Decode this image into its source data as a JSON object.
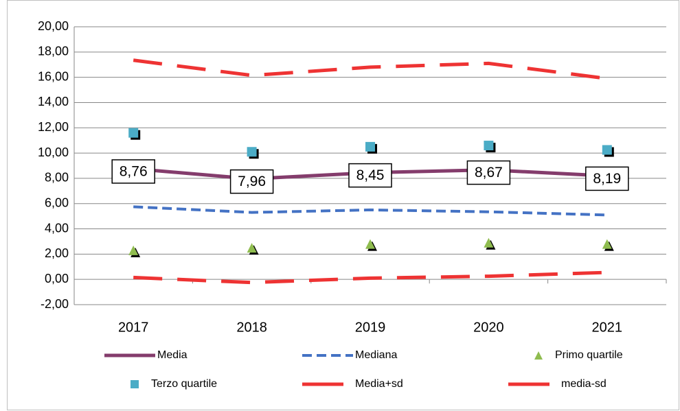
{
  "chart_data": {
    "type": "line",
    "categories": [
      "2017",
      "2018",
      "2019",
      "2020",
      "2021"
    ],
    "ylim": [
      -2,
      20
    ],
    "yticks": [
      {
        "value": -2,
        "label": "-2,00"
      },
      {
        "value": 0,
        "label": "0,00"
      },
      {
        "value": 2,
        "label": "2,00"
      },
      {
        "value": 4,
        "label": "4,00"
      },
      {
        "value": 6,
        "label": "6,00"
      },
      {
        "value": 8,
        "label": "8,00"
      },
      {
        "value": 10,
        "label": "10,00"
      },
      {
        "value": 12,
        "label": "12,00"
      },
      {
        "value": 14,
        "label": "14,00"
      },
      {
        "value": 16,
        "label": "16,00"
      },
      {
        "value": 18,
        "label": "18,00"
      },
      {
        "value": 20,
        "label": "20,00"
      }
    ],
    "grid": true,
    "legend": "bottom",
    "series": [
      {
        "name": "Media",
        "color": "#843c6c",
        "line_style": "solid",
        "values": [
          8.76,
          7.96,
          8.45,
          8.67,
          8.19
        ],
        "value_labels": [
          "8,76",
          "7,96",
          "8,45",
          "8,67",
          "8,19"
        ]
      },
      {
        "name": "Mediana",
        "color": "#4472c4",
        "line_style": "dashed",
        "values": [
          5.75,
          5.3,
          5.5,
          5.35,
          5.1
        ]
      },
      {
        "name": "Primo quartile",
        "color": "#8fbc4f",
        "marker": "triangle",
        "values": [
          2.3,
          2.5,
          2.8,
          2.9,
          2.8
        ]
      },
      {
        "name": "Terzo quartile",
        "color": "#4bacc6",
        "marker": "square",
        "values": [
          11.6,
          10.1,
          10.5,
          10.6,
          10.25
        ]
      },
      {
        "name": "Media+sd",
        "color": "#ee3333",
        "line_style": "long-dash",
        "values": [
          17.35,
          16.15,
          16.8,
          17.1,
          15.9
        ]
      },
      {
        "name": "media-sd",
        "color": "#ee3333",
        "line_style": "long-dash",
        "values": [
          0.15,
          -0.25,
          0.1,
          0.25,
          0.55
        ]
      }
    ]
  }
}
